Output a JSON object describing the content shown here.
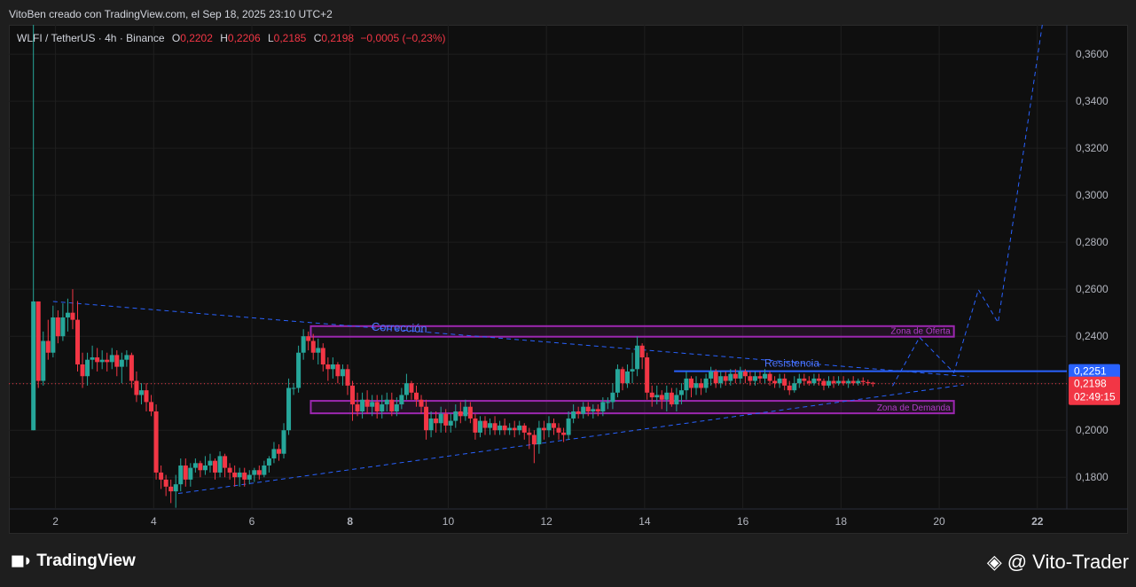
{
  "header": {
    "credit": "VitoBen creado con TradingView.com, el Sep 18, 2025 23:10 UTC+2"
  },
  "legend": {
    "symbol": "WLFI / TetherUS · 4h · Binance",
    "o_label": "O",
    "o_value": "0,2202",
    "h_label": "H",
    "h_value": "0,2206",
    "l_label": "L",
    "l_value": "0,2185",
    "c_label": "C",
    "c_value": "0,2198",
    "change": "−0,0005 (−0,23%)"
  },
  "colors": {
    "up": "#26a69a",
    "down": "#f23645",
    "zone": "#9c27b0",
    "line": "#2962ff",
    "resistance": "#2962ff",
    "price_tag": "#f23645"
  },
  "footer": {
    "logo_text": "TradingView",
    "watermark": "@ Vito-Trader"
  },
  "chart_data": {
    "type": "candlestick",
    "timeframe": "4h",
    "x_ticks": [
      "2",
      "4",
      "6",
      "8",
      "10",
      "12",
      "14",
      "16",
      "18",
      "20",
      "22"
    ],
    "y_ticks": [
      "0,1800",
      "0,2000",
      "0,2200",
      "0,2400",
      "0,2600",
      "0,2800",
      "0,3000",
      "0,3200",
      "0,3400",
      "0,3600"
    ],
    "ylim": [
      0.1665,
      0.3725
    ],
    "xlim": [
      1.05,
      22.6
    ],
    "last_price": {
      "value": 0.2198,
      "label": "0,2198",
      "countdown": "02:49:15"
    },
    "resistance": {
      "value": 0.2251,
      "label": "0,2251",
      "text": "Resistencia",
      "from": 14.6
    },
    "zones": [
      {
        "name": "Zona de Oferta",
        "from": 7.2,
        "to": 20.3,
        "low": 0.2398,
        "high": 0.2443
      },
      {
        "name": "Zona de Demanda",
        "from": 7.2,
        "to": 20.3,
        "low": 0.2072,
        "high": 0.2125
      }
    ],
    "annotations": [
      {
        "text": "Corrección",
        "x": 9.0,
        "y": 0.242
      }
    ],
    "trendlines": [
      {
        "points": [
          [
            1.95,
            0.2548
          ],
          [
            20.6,
            0.2228
          ]
        ]
      },
      {
        "points": [
          [
            4.5,
            0.1731
          ],
          [
            20.5,
            0.2193
          ]
        ]
      }
    ],
    "projection": [
      [
        19.05,
        0.2188
      ],
      [
        19.6,
        0.2395
      ],
      [
        20.3,
        0.2245
      ],
      [
        20.8,
        0.2598
      ],
      [
        21.2,
        0.2458
      ],
      [
        22.1,
        0.3725
      ]
    ],
    "candles": [
      [
        1.55,
        0.2,
        0.2548,
        0.3725,
        0.2
      ],
      [
        1.65,
        0.2548,
        0.221,
        0.2548,
        0.218
      ],
      [
        1.75,
        0.221,
        0.238,
        0.242,
        0.219
      ],
      [
        1.85,
        0.238,
        0.233,
        0.247,
        0.23
      ],
      [
        1.95,
        0.233,
        0.248,
        0.253,
        0.231
      ],
      [
        2.05,
        0.248,
        0.24,
        0.251,
        0.237
      ],
      [
        2.15,
        0.24,
        0.248,
        0.254,
        0.238
      ],
      [
        2.25,
        0.248,
        0.25,
        0.256,
        0.242
      ],
      [
        2.35,
        0.25,
        0.247,
        0.26,
        0.243
      ],
      [
        2.45,
        0.247,
        0.228,
        0.255,
        0.225
      ],
      [
        2.55,
        0.228,
        0.223,
        0.233,
        0.218
      ],
      [
        2.65,
        0.223,
        0.23,
        0.233,
        0.219
      ],
      [
        2.75,
        0.23,
        0.231,
        0.236,
        0.226
      ],
      [
        2.85,
        0.231,
        0.229,
        0.235,
        0.225
      ],
      [
        2.95,
        0.229,
        0.23,
        0.234,
        0.226
      ],
      [
        3.05,
        0.23,
        0.229,
        0.233,
        0.225
      ],
      [
        3.15,
        0.229,
        0.232,
        0.235,
        0.226
      ],
      [
        3.25,
        0.232,
        0.227,
        0.234,
        0.223
      ],
      [
        3.35,
        0.227,
        0.23,
        0.233,
        0.22
      ],
      [
        3.45,
        0.23,
        0.232,
        0.234,
        0.227
      ],
      [
        3.55,
        0.232,
        0.221,
        0.233,
        0.218
      ],
      [
        3.65,
        0.221,
        0.215,
        0.225,
        0.212
      ],
      [
        3.75,
        0.215,
        0.217,
        0.22,
        0.211
      ],
      [
        3.85,
        0.217,
        0.212,
        0.22,
        0.208
      ],
      [
        3.95,
        0.212,
        0.208,
        0.215,
        0.206
      ],
      [
        4.05,
        0.208,
        0.182,
        0.211,
        0.179
      ],
      [
        4.15,
        0.182,
        0.179,
        0.185,
        0.175
      ],
      [
        4.25,
        0.179,
        0.176,
        0.181,
        0.172
      ],
      [
        4.35,
        0.176,
        0.174,
        0.179,
        0.169
      ],
      [
        4.45,
        0.174,
        0.177,
        0.181,
        0.167
      ],
      [
        4.55,
        0.177,
        0.185,
        0.188,
        0.174
      ],
      [
        4.65,
        0.185,
        0.179,
        0.188,
        0.176
      ],
      [
        4.75,
        0.179,
        0.184,
        0.186,
        0.176
      ],
      [
        4.85,
        0.184,
        0.186,
        0.188,
        0.182
      ],
      [
        4.95,
        0.186,
        0.183,
        0.187,
        0.18
      ],
      [
        5.05,
        0.183,
        0.185,
        0.189,
        0.181
      ],
      [
        5.15,
        0.185,
        0.187,
        0.19,
        0.182
      ],
      [
        5.25,
        0.187,
        0.182,
        0.188,
        0.179
      ],
      [
        5.35,
        0.182,
        0.189,
        0.191,
        0.18
      ],
      [
        5.45,
        0.189,
        0.184,
        0.19,
        0.18
      ],
      [
        5.55,
        0.184,
        0.182,
        0.186,
        0.179
      ],
      [
        5.65,
        0.182,
        0.18,
        0.185,
        0.176
      ],
      [
        5.75,
        0.18,
        0.182,
        0.184,
        0.176
      ],
      [
        5.85,
        0.182,
        0.179,
        0.184,
        0.176
      ],
      [
        5.95,
        0.179,
        0.181,
        0.183,
        0.177
      ],
      [
        6.05,
        0.181,
        0.183,
        0.184,
        0.178
      ],
      [
        6.15,
        0.183,
        0.181,
        0.185,
        0.179
      ],
      [
        6.25,
        0.181,
        0.185,
        0.187,
        0.18
      ],
      [
        6.35,
        0.185,
        0.188,
        0.189,
        0.182
      ],
      [
        6.45,
        0.188,
        0.192,
        0.195,
        0.186
      ],
      [
        6.55,
        0.192,
        0.19,
        0.194,
        0.187
      ],
      [
        6.65,
        0.19,
        0.2,
        0.203,
        0.188
      ],
      [
        6.75,
        0.2,
        0.218,
        0.222,
        0.198
      ],
      [
        6.85,
        0.218,
        0.218,
        0.22,
        0.215
      ],
      [
        6.95,
        0.218,
        0.233,
        0.236,
        0.216
      ],
      [
        7.05,
        0.233,
        0.24,
        0.243,
        0.23
      ],
      [
        7.15,
        0.24,
        0.238,
        0.242,
        0.234
      ],
      [
        7.25,
        0.238,
        0.233,
        0.241,
        0.23
      ],
      [
        7.35,
        0.233,
        0.235,
        0.239,
        0.228
      ],
      [
        7.45,
        0.235,
        0.228,
        0.237,
        0.225
      ],
      [
        7.55,
        0.228,
        0.226,
        0.231,
        0.221
      ],
      [
        7.65,
        0.226,
        0.228,
        0.231,
        0.222
      ],
      [
        7.75,
        0.228,
        0.223,
        0.229,
        0.22
      ],
      [
        7.85,
        0.223,
        0.226,
        0.228,
        0.219
      ],
      [
        7.95,
        0.226,
        0.219,
        0.228,
        0.215
      ],
      [
        8.05,
        0.219,
        0.211,
        0.221,
        0.204
      ],
      [
        8.15,
        0.211,
        0.208,
        0.216,
        0.206
      ],
      [
        8.25,
        0.208,
        0.213,
        0.216,
        0.205
      ],
      [
        8.35,
        0.213,
        0.21,
        0.217,
        0.207
      ],
      [
        8.45,
        0.21,
        0.212,
        0.215,
        0.206
      ],
      [
        8.55,
        0.212,
        0.208,
        0.215,
        0.205
      ],
      [
        8.65,
        0.208,
        0.211,
        0.215,
        0.205
      ],
      [
        8.75,
        0.211,
        0.213,
        0.216,
        0.208
      ],
      [
        8.85,
        0.213,
        0.208,
        0.216,
        0.206
      ],
      [
        8.95,
        0.208,
        0.211,
        0.214,
        0.206
      ],
      [
        9.05,
        0.211,
        0.215,
        0.218,
        0.209
      ],
      [
        9.15,
        0.215,
        0.22,
        0.224,
        0.213
      ],
      [
        9.25,
        0.22,
        0.216,
        0.221,
        0.213
      ],
      [
        9.35,
        0.216,
        0.213,
        0.219,
        0.21
      ],
      [
        9.45,
        0.213,
        0.21,
        0.215,
        0.207
      ],
      [
        9.55,
        0.21,
        0.2,
        0.213,
        0.196
      ],
      [
        9.65,
        0.2,
        0.205,
        0.208,
        0.197
      ],
      [
        9.75,
        0.205,
        0.203,
        0.208,
        0.199
      ],
      [
        9.85,
        0.203,
        0.207,
        0.21,
        0.199
      ],
      [
        9.95,
        0.207,
        0.202,
        0.209,
        0.199
      ],
      [
        10.05,
        0.202,
        0.204,
        0.207,
        0.199
      ],
      [
        10.15,
        0.204,
        0.208,
        0.211,
        0.201
      ],
      [
        10.25,
        0.208,
        0.206,
        0.212,
        0.203
      ],
      [
        10.35,
        0.206,
        0.21,
        0.213,
        0.204
      ],
      [
        10.45,
        0.21,
        0.205,
        0.212,
        0.203
      ],
      [
        10.55,
        0.205,
        0.199,
        0.207,
        0.196
      ],
      [
        10.65,
        0.199,
        0.204,
        0.206,
        0.197
      ],
      [
        10.75,
        0.204,
        0.201,
        0.206,
        0.198
      ],
      [
        10.85,
        0.201,
        0.203,
        0.205,
        0.198
      ],
      [
        10.95,
        0.203,
        0.2,
        0.206,
        0.198
      ],
      [
        11.05,
        0.2,
        0.202,
        0.204,
        0.198
      ],
      [
        11.15,
        0.202,
        0.2,
        0.205,
        0.198
      ],
      [
        11.25,
        0.2,
        0.201,
        0.203,
        0.198
      ],
      [
        11.35,
        0.201,
        0.2,
        0.204,
        0.197
      ],
      [
        11.45,
        0.2,
        0.202,
        0.204,
        0.198
      ],
      [
        11.55,
        0.202,
        0.199,
        0.203,
        0.196
      ],
      [
        11.65,
        0.199,
        0.198,
        0.201,
        0.192
      ],
      [
        11.75,
        0.198,
        0.194,
        0.2,
        0.186
      ],
      [
        11.85,
        0.194,
        0.201,
        0.204,
        0.19
      ],
      [
        11.95,
        0.201,
        0.2,
        0.204,
        0.196
      ],
      [
        12.05,
        0.2,
        0.203,
        0.206,
        0.197
      ],
      [
        12.15,
        0.203,
        0.201,
        0.205,
        0.198
      ],
      [
        12.25,
        0.201,
        0.199,
        0.203,
        0.196
      ],
      [
        12.35,
        0.199,
        0.198,
        0.201,
        0.195
      ],
      [
        12.45,
        0.198,
        0.205,
        0.208,
        0.196
      ],
      [
        12.55,
        0.205,
        0.208,
        0.211,
        0.203
      ],
      [
        12.65,
        0.208,
        0.207,
        0.21,
        0.205
      ],
      [
        12.75,
        0.207,
        0.21,
        0.212,
        0.205
      ],
      [
        12.85,
        0.21,
        0.208,
        0.212,
        0.206
      ],
      [
        12.95,
        0.208,
        0.209,
        0.211,
        0.205
      ],
      [
        13.05,
        0.209,
        0.208,
        0.211,
        0.206
      ],
      [
        13.15,
        0.208,
        0.212,
        0.214,
        0.206
      ],
      [
        13.25,
        0.212,
        0.212,
        0.214,
        0.209
      ],
      [
        13.35,
        0.212,
        0.216,
        0.22,
        0.209
      ],
      [
        13.45,
        0.216,
        0.226,
        0.228,
        0.214
      ],
      [
        13.55,
        0.226,
        0.22,
        0.227,
        0.217
      ],
      [
        13.65,
        0.22,
        0.225,
        0.228,
        0.218
      ],
      [
        13.75,
        0.225,
        0.226,
        0.233,
        0.22
      ],
      [
        13.85,
        0.226,
        0.236,
        0.24,
        0.223
      ],
      [
        13.95,
        0.236,
        0.231,
        0.237,
        0.226
      ],
      [
        14.05,
        0.231,
        0.216,
        0.233,
        0.213
      ],
      [
        14.15,
        0.216,
        0.214,
        0.219,
        0.21
      ],
      [
        14.25,
        0.214,
        0.215,
        0.219,
        0.211
      ],
      [
        14.35,
        0.215,
        0.213,
        0.217,
        0.209
      ],
      [
        14.45,
        0.213,
        0.216,
        0.219,
        0.208
      ],
      [
        14.55,
        0.216,
        0.211,
        0.218,
        0.21
      ],
      [
        14.65,
        0.211,
        0.215,
        0.218,
        0.208
      ],
      [
        14.75,
        0.215,
        0.217,
        0.22,
        0.211
      ],
      [
        14.85,
        0.217,
        0.222,
        0.225,
        0.213
      ],
      [
        14.95,
        0.222,
        0.218,
        0.223,
        0.214
      ],
      [
        15.05,
        0.218,
        0.22,
        0.223,
        0.215
      ],
      [
        15.15,
        0.22,
        0.218,
        0.222,
        0.215
      ],
      [
        15.25,
        0.218,
        0.222,
        0.224,
        0.216
      ],
      [
        15.35,
        0.222,
        0.225,
        0.227,
        0.219
      ],
      [
        15.45,
        0.225,
        0.22,
        0.226,
        0.218
      ],
      [
        15.55,
        0.22,
        0.223,
        0.225,
        0.218
      ],
      [
        15.65,
        0.223,
        0.221,
        0.225,
        0.219
      ],
      [
        15.75,
        0.221,
        0.224,
        0.226,
        0.219
      ],
      [
        15.85,
        0.224,
        0.222,
        0.226,
        0.22
      ],
      [
        15.95,
        0.222,
        0.225,
        0.227,
        0.22
      ],
      [
        16.05,
        0.225,
        0.223,
        0.226,
        0.22
      ],
      [
        16.15,
        0.223,
        0.221,
        0.225,
        0.219
      ],
      [
        16.25,
        0.221,
        0.223,
        0.225,
        0.219
      ],
      [
        16.35,
        0.223,
        0.222,
        0.225,
        0.22
      ],
      [
        16.45,
        0.222,
        0.224,
        0.226,
        0.22
      ],
      [
        16.55,
        0.224,
        0.221,
        0.225,
        0.219
      ],
      [
        16.65,
        0.221,
        0.22,
        0.223,
        0.218
      ],
      [
        16.75,
        0.22,
        0.222,
        0.224,
        0.218
      ],
      [
        16.85,
        0.222,
        0.219,
        0.224,
        0.217
      ],
      [
        16.95,
        0.219,
        0.217,
        0.221,
        0.215
      ],
      [
        17.05,
        0.217,
        0.22,
        0.223,
        0.216
      ],
      [
        17.15,
        0.22,
        0.222,
        0.224,
        0.218
      ],
      [
        17.25,
        0.222,
        0.221,
        0.224,
        0.219
      ],
      [
        17.35,
        0.221,
        0.22,
        0.223,
        0.219
      ],
      [
        17.45,
        0.22,
        0.222,
        0.224,
        0.219
      ],
      [
        17.55,
        0.222,
        0.221,
        0.224,
        0.219
      ],
      [
        17.65,
        0.221,
        0.219,
        0.222,
        0.217
      ],
      [
        17.75,
        0.219,
        0.221,
        0.223,
        0.218
      ],
      [
        17.85,
        0.221,
        0.22,
        0.223,
        0.218
      ],
      [
        17.95,
        0.22,
        0.221,
        0.223,
        0.219
      ],
      [
        18.05,
        0.221,
        0.22,
        0.223,
        0.219
      ],
      [
        18.15,
        0.22,
        0.221,
        0.222,
        0.218
      ],
      [
        18.25,
        0.221,
        0.22,
        0.223,
        0.219
      ],
      [
        18.35,
        0.22,
        0.221,
        0.222,
        0.219
      ],
      [
        18.45,
        0.221,
        0.2205,
        0.2225,
        0.219
      ],
      [
        18.55,
        0.2205,
        0.22,
        0.2215,
        0.219
      ],
      [
        18.65,
        0.2202,
        0.2198,
        0.2206,
        0.2185
      ]
    ]
  }
}
